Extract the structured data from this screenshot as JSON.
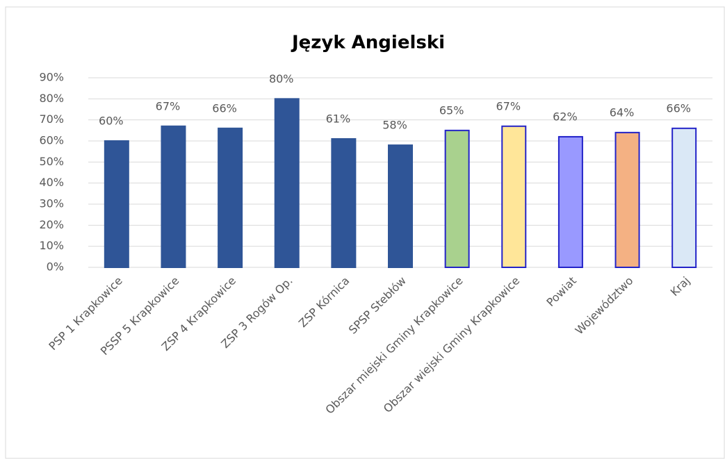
{
  "chart_data": {
    "type": "bar",
    "title": "Język Angielski",
    "categories": [
      "PSP 1 Krapkowice",
      "PSSP 5 Krapkowice",
      "ZSP 4 Krapkowice",
      "ZSP 3 Rogów Op.",
      "ZSP Kórnica",
      "SPSP Stebłów",
      "Obszar miejski Gminy Krapkowice",
      "Obszar wiejski Gminy Krapkowice",
      "Powiat",
      "Województwo",
      "Kraj"
    ],
    "values": [
      60,
      67,
      66,
      80,
      61,
      58,
      65,
      67,
      62,
      64,
      66
    ],
    "value_labels": [
      "60%",
      "67%",
      "66%",
      "80%",
      "61%",
      "58%",
      "65%",
      "67%",
      "62%",
      "64%",
      "66%"
    ],
    "colors": [
      "#2f5597",
      "#2f5597",
      "#2f5597",
      "#2f5597",
      "#2f5597",
      "#2f5597",
      "#a9d18e",
      "#ffe699",
      "#9999ff",
      "#f4b183",
      "#dae8f6"
    ],
    "edgecolors": [
      "#2f5597",
      "#2f5597",
      "#2f5597",
      "#2f5597",
      "#2f5597",
      "#2f5597",
      "#2323c8",
      "#2323c8",
      "#2323c8",
      "#2323c8",
      "#2323c8"
    ],
    "ylim": [
      0,
      90
    ],
    "yticks": [
      {
        "value": 0,
        "label": "0%"
      },
      {
        "value": 10,
        "label": "10%"
      },
      {
        "value": 20,
        "label": "20%"
      },
      {
        "value": 30,
        "label": "30%"
      },
      {
        "value": 40,
        "label": "40%"
      },
      {
        "value": 50,
        "label": "50%"
      },
      {
        "value": 60,
        "label": "60%"
      },
      {
        "value": 70,
        "label": "70%"
      },
      {
        "value": 80,
        "label": "80%"
      },
      {
        "value": 90,
        "label": "90%"
      }
    ],
    "grid": true
  }
}
